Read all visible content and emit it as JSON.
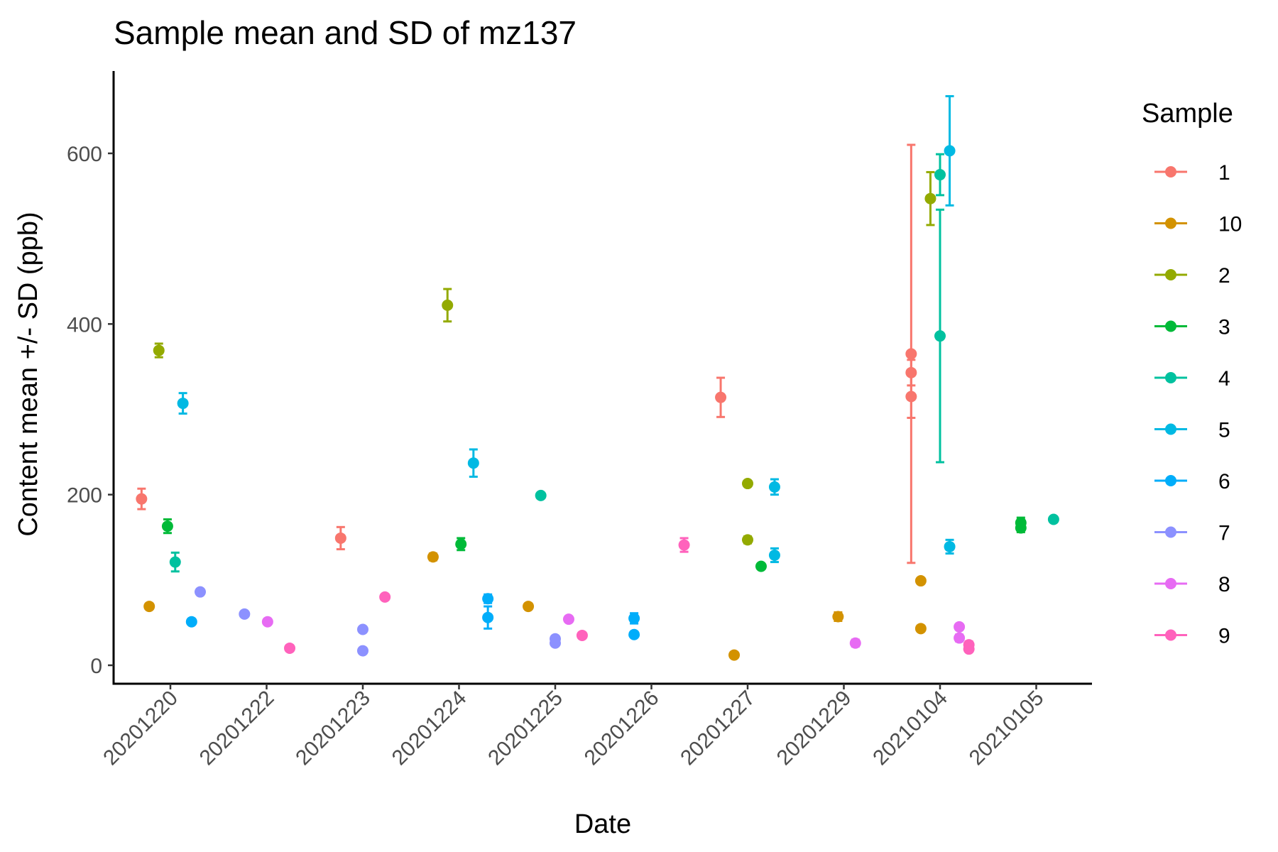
{
  "chart_data": {
    "type": "scatter",
    "title": "Sample mean and SD of mz137",
    "xlabel": "Date",
    "ylabel": "Content mean +/- SD (ppb)",
    "x_categories": [
      "20201220",
      "20201222",
      "20201223",
      "20201224",
      "20201225",
      "20201226",
      "20201227",
      "20201229",
      "20210104",
      "20210105"
    ],
    "y_ticks": [
      0,
      200,
      400,
      600
    ],
    "ylim": [
      -20,
      700
    ],
    "grid": false,
    "legend": {
      "title": "Sample",
      "position": "right"
    },
    "series": [
      {
        "name": "1",
        "color": "#F8766D",
        "points": [
          {
            "x": "20201220",
            "offset": -0.3,
            "y": 195,
            "sd": 12
          },
          {
            "x": "20201223",
            "offset": -0.23,
            "y": 149,
            "sd": 13
          },
          {
            "x": "20201227",
            "offset": -0.28,
            "y": 314,
            "sd": 23
          },
          {
            "x": "20210104",
            "offset": -0.3,
            "y": 365,
            "sd": 245
          },
          {
            "x": "20210104",
            "offset": -0.3,
            "y": 343,
            "sd": 15
          },
          {
            "x": "20210104",
            "offset": -0.3,
            "y": 315,
            "sd": 25
          }
        ]
      },
      {
        "name": "10",
        "color": "#D39200",
        "points": [
          {
            "x": "20201220",
            "offset": -0.22,
            "y": 69,
            "sd": 3
          },
          {
            "x": "20201224",
            "offset": -0.27,
            "y": 127,
            "sd": 4
          },
          {
            "x": "20201225",
            "offset": -0.28,
            "y": 69,
            "sd": 3
          },
          {
            "x": "20201227",
            "offset": -0.14,
            "y": 12,
            "sd": 3
          },
          {
            "x": "20201229",
            "offset": -0.06,
            "y": 57,
            "sd": 5
          },
          {
            "x": "20210104",
            "offset": -0.2,
            "y": 99,
            "sd": 3
          },
          {
            "x": "20210104",
            "offset": -0.2,
            "y": 43,
            "sd": 3
          }
        ]
      },
      {
        "name": "2",
        "color": "#93AA00",
        "points": [
          {
            "x": "20201220",
            "offset": -0.12,
            "y": 369,
            "sd": 8
          },
          {
            "x": "20201224",
            "offset": -0.12,
            "y": 422,
            "sd": 19
          },
          {
            "x": "20201227",
            "offset": 0.0,
            "y": 213,
            "sd": 3
          },
          {
            "x": "20201227",
            "offset": 0.0,
            "y": 147,
            "sd": 4
          },
          {
            "x": "20210104",
            "offset": -0.1,
            "y": 547,
            "sd": 31
          }
        ]
      },
      {
        "name": "3",
        "color": "#00BA38",
        "points": [
          {
            "x": "20201220",
            "offset": -0.03,
            "y": 163,
            "sd": 8
          },
          {
            "x": "20201224",
            "offset": 0.02,
            "y": 142,
            "sd": 7
          },
          {
            "x": "20201227",
            "offset": 0.14,
            "y": 116,
            "sd": 3
          },
          {
            "x": "20210105",
            "offset": -0.16,
            "y": 167,
            "sd": 6
          },
          {
            "x": "20210105",
            "offset": -0.16,
            "y": 161,
            "sd": 5
          }
        ]
      },
      {
        "name": "4",
        "color": "#00C19F",
        "points": [
          {
            "x": "20201220",
            "offset": 0.05,
            "y": 121,
            "sd": 11
          },
          {
            "x": "20201225",
            "offset": -0.15,
            "y": 199,
            "sd": 3
          },
          {
            "x": "20210104",
            "offset": 0.0,
            "y": 575,
            "sd": 24
          },
          {
            "x": "20210104",
            "offset": 0.0,
            "y": 386,
            "sd": 148
          },
          {
            "x": "20210105",
            "offset": 0.18,
            "y": 171,
            "sd": 3
          }
        ]
      },
      {
        "name": "5",
        "color": "#00B9E3",
        "points": [
          {
            "x": "20201220",
            "offset": 0.13,
            "y": 307,
            "sd": 12
          },
          {
            "x": "20201224",
            "offset": 0.15,
            "y": 237,
            "sd": 16
          },
          {
            "x": "20201227",
            "offset": 0.28,
            "y": 209,
            "sd": 9
          },
          {
            "x": "20201227",
            "offset": 0.28,
            "y": 129,
            "sd": 8
          },
          {
            "x": "20210104",
            "offset": 0.1,
            "y": 603,
            "sd": 64
          },
          {
            "x": "20210104",
            "offset": 0.1,
            "y": 139,
            "sd": 8
          }
        ]
      },
      {
        "name": "6",
        "color": "#00ADFA",
        "points": [
          {
            "x": "20201220",
            "offset": 0.22,
            "y": 51,
            "sd": 3
          },
          {
            "x": "20201224",
            "offset": 0.3,
            "y": 78,
            "sd": 5
          },
          {
            "x": "20201224",
            "offset": 0.3,
            "y": 56,
            "sd": 13
          },
          {
            "x": "20201225",
            "offset": 0.82,
            "y": 55,
            "sd": 6
          },
          {
            "x": "20201225",
            "offset": 0.82,
            "y": 36,
            "sd": 3
          }
        ]
      },
      {
        "name": "7",
        "color": "#8C91FF",
        "points": [
          {
            "x": "20201220",
            "offset": 0.31,
            "y": 86,
            "sd": 3
          },
          {
            "x": "20201222",
            "offset": -0.23,
            "y": 60,
            "sd": 3
          },
          {
            "x": "20201223",
            "offset": 0.0,
            "y": 42,
            "sd": 3
          },
          {
            "x": "20201223",
            "offset": 0.0,
            "y": 17,
            "sd": 3
          },
          {
            "x": "20201225",
            "offset": 0.0,
            "y": 31,
            "sd": 3
          },
          {
            "x": "20201225",
            "offset": 0.0,
            "y": 26,
            "sd": 3
          }
        ]
      },
      {
        "name": "8",
        "color": "#E76BF3",
        "points": [
          {
            "x": "20201222",
            "offset": 0.01,
            "y": 51,
            "sd": 3
          },
          {
            "x": "20201225",
            "offset": 0.14,
            "y": 54,
            "sd": 3
          },
          {
            "x": "20201229",
            "offset": 0.12,
            "y": 26,
            "sd": 4
          },
          {
            "x": "20210104",
            "offset": 0.2,
            "y": 45,
            "sd": 3
          },
          {
            "x": "20210104",
            "offset": 0.2,
            "y": 32,
            "sd": 4
          }
        ]
      },
      {
        "name": "9",
        "color": "#FF62BC",
        "points": [
          {
            "x": "20201222",
            "offset": 0.24,
            "y": 20,
            "sd": 3
          },
          {
            "x": "20201223",
            "offset": 0.23,
            "y": 80,
            "sd": 3
          },
          {
            "x": "20201225",
            "offset": 0.28,
            "y": 35,
            "sd": 3
          },
          {
            "x": "20201226",
            "offset": 0.34,
            "y": 141,
            "sd": 8
          },
          {
            "x": "20210104",
            "offset": 0.3,
            "y": 24,
            "sd": 4
          },
          {
            "x": "20210104",
            "offset": 0.3,
            "y": 19,
            "sd": 3
          }
        ]
      }
    ]
  }
}
